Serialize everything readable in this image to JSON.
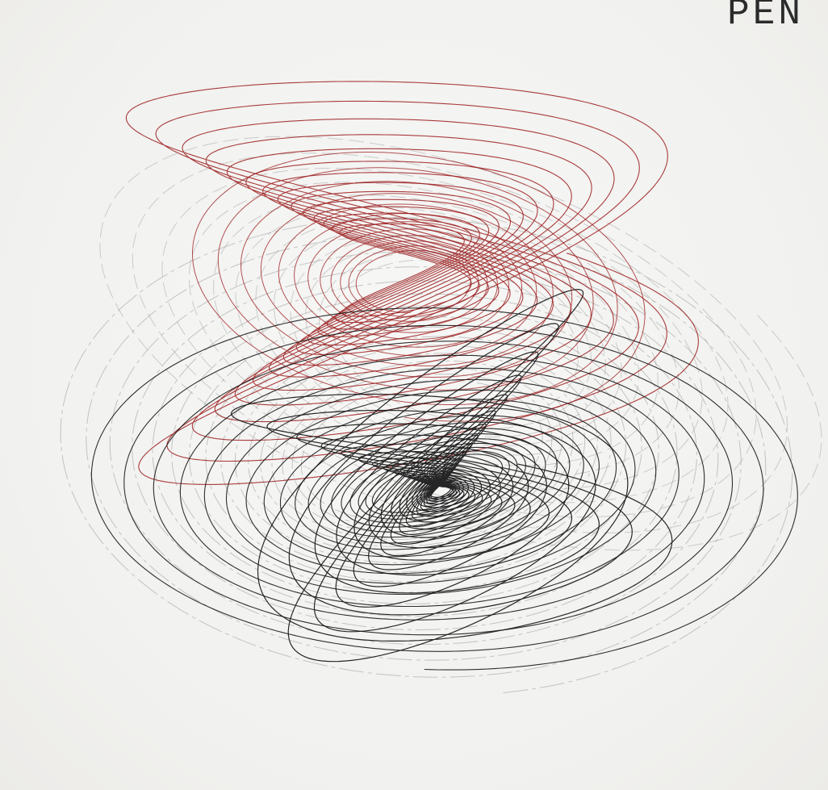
{
  "corner_text": "PEN",
  "colors": {
    "paper": "#f4f4f3",
    "red_ink": "#9a1b1b",
    "black_ink": "#1a1a1a",
    "faint_ink": "#9a9a9a"
  },
  "drawing": {
    "description_icon": "harmonograph-drawing-icon",
    "layers": [
      "red-ink-layer",
      "black-ink-layer",
      "faint-outer-layer"
    ]
  }
}
